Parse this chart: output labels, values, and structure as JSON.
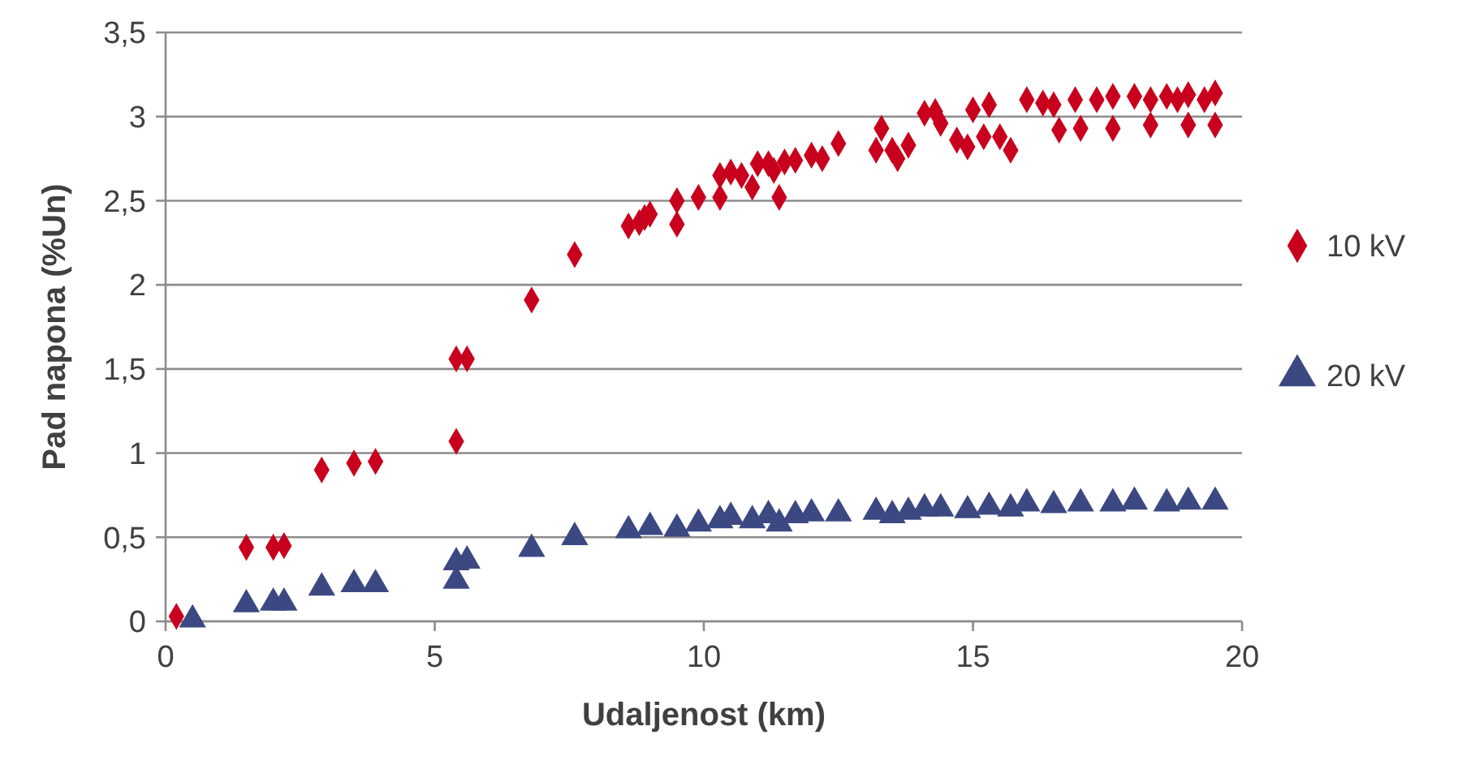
{
  "chart_data": {
    "type": "scatter",
    "xlabel": "Udaljenost (km)",
    "ylabel": "Pad napona (%Un)",
    "xlim": [
      0,
      20
    ],
    "xticks": [
      0,
      5,
      10,
      15,
      20
    ],
    "ylim": [
      0,
      3.5
    ],
    "yticks": [
      0,
      {
        "value": 0.5,
        "label": "0,5"
      },
      1,
      {
        "value": 1.5,
        "label": "1,5"
      },
      2,
      {
        "value": 2.5,
        "label": "2,5"
      },
      3,
      {
        "value": 3.5,
        "label": "3,5"
      }
    ],
    "grid": "y",
    "legend": "right",
    "series": [
      {
        "name": "10 kV",
        "color": "#c8001e",
        "marker": "diamond",
        "x": [
          0.2,
          1.5,
          2.0,
          2.2,
          2.9,
          3.5,
          3.9,
          5.4,
          5.4,
          5.6,
          6.8,
          7.6,
          8.6,
          8.8,
          8.9,
          9.0,
          9.5,
          9.5,
          9.9,
          10.3,
          10.3,
          10.5,
          10.7,
          10.9,
          11.0,
          11.2,
          11.3,
          11.4,
          11.5,
          11.7,
          12.0,
          12.2,
          12.5,
          13.2,
          13.3,
          13.5,
          13.6,
          13.8,
          14.1,
          14.3,
          14.4,
          14.7,
          14.9,
          15.0,
          15.3,
          15.2,
          15.5,
          15.7,
          16.0,
          16.3,
          16.5,
          16.6,
          16.9,
          17.0,
          17.3,
          17.6,
          17.6,
          18.0,
          18.3,
          18.3,
          18.6,
          18.8,
          19.0,
          19.0,
          19.3,
          19.5,
          19.5
        ],
        "values": [
          0.03,
          0.44,
          0.44,
          0.45,
          0.9,
          0.94,
          0.95,
          1.07,
          1.56,
          1.56,
          1.91,
          2.18,
          2.35,
          2.37,
          2.4,
          2.42,
          2.36,
          2.5,
          2.52,
          2.52,
          2.65,
          2.67,
          2.65,
          2.58,
          2.72,
          2.72,
          2.68,
          2.52,
          2.73,
          2.74,
          2.77,
          2.75,
          2.84,
          2.8,
          2.93,
          2.8,
          2.75,
          2.83,
          3.02,
          3.03,
          2.96,
          2.86,
          2.82,
          3.04,
          3.07,
          2.88,
          2.88,
          2.8,
          3.1,
          3.08,
          3.07,
          2.92,
          3.1,
          2.93,
          3.1,
          3.12,
          2.93,
          3.12,
          3.1,
          2.95,
          3.12,
          3.1,
          3.13,
          2.95,
          3.1,
          3.14,
          2.95
        ]
      },
      {
        "name": "20 kV",
        "color": "#3c4882",
        "marker": "triangle",
        "x": [
          0.5,
          1.5,
          2.0,
          2.2,
          2.9,
          3.5,
          3.9,
          5.4,
          5.4,
          5.6,
          6.8,
          7.6,
          8.6,
          9.0,
          9.5,
          9.9,
          10.3,
          10.5,
          10.9,
          11.2,
          11.4,
          11.7,
          12.0,
          12.5,
          13.2,
          13.5,
          13.8,
          14.1,
          14.4,
          14.9,
          15.3,
          15.7,
          16.0,
          16.5,
          17.0,
          17.6,
          18.0,
          18.6,
          19.0,
          19.5
        ],
        "values": [
          0.01,
          0.1,
          0.11,
          0.11,
          0.2,
          0.22,
          0.22,
          0.24,
          0.35,
          0.36,
          0.43,
          0.5,
          0.54,
          0.56,
          0.55,
          0.58,
          0.6,
          0.62,
          0.6,
          0.63,
          0.58,
          0.63,
          0.64,
          0.64,
          0.65,
          0.63,
          0.65,
          0.67,
          0.67,
          0.66,
          0.68,
          0.67,
          0.7,
          0.69,
          0.7,
          0.7,
          0.71,
          0.7,
          0.71,
          0.71
        ]
      }
    ]
  }
}
